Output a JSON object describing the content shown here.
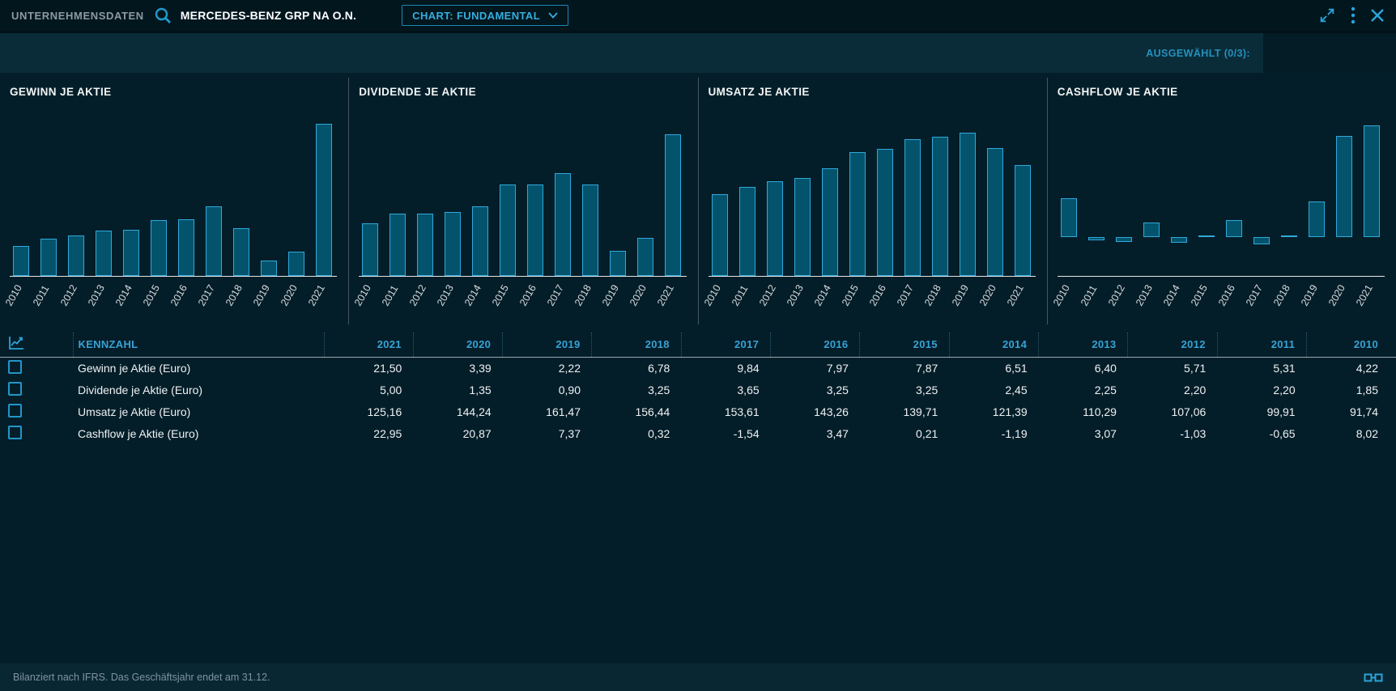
{
  "topbar": {
    "app_label": "UNTERNEHMENSDATEN",
    "security_name": "MERCEDES-BENZ GRP NA O.N.",
    "chart_selector_label": "CHART: FUNDAMENTAL"
  },
  "toolbar": {
    "selected_label": "AUSGEWÄHLT (0/3):"
  },
  "chart_data": [
    {
      "type": "bar",
      "title": "GEWINN JE AKTIE",
      "categories": [
        "2010",
        "2011",
        "2012",
        "2013",
        "2014",
        "2015",
        "2016",
        "2017",
        "2018",
        "2019",
        "2020",
        "2021"
      ],
      "values": [
        4.22,
        5.31,
        5.71,
        6.4,
        6.51,
        7.87,
        7.97,
        9.84,
        6.78,
        2.22,
        3.39,
        21.5
      ],
      "ylim": [
        0,
        22
      ],
      "grid": false,
      "legend": false
    },
    {
      "type": "bar",
      "title": "DIVIDENDE JE AKTIE",
      "categories": [
        "2010",
        "2011",
        "2012",
        "2013",
        "2014",
        "2015",
        "2016",
        "2017",
        "2018",
        "2019",
        "2020",
        "2021"
      ],
      "values": [
        1.85,
        2.2,
        2.2,
        2.25,
        2.45,
        3.25,
        3.25,
        3.65,
        3.25,
        0.9,
        1.35,
        5.0
      ],
      "ylim": [
        0,
        5.5
      ],
      "grid": false,
      "legend": false
    },
    {
      "type": "bar",
      "title": "UMSATZ JE AKTIE",
      "categories": [
        "2010",
        "2011",
        "2012",
        "2013",
        "2014",
        "2015",
        "2016",
        "2017",
        "2018",
        "2019",
        "2020",
        "2021"
      ],
      "values": [
        91.74,
        99.91,
        107.06,
        110.29,
        121.39,
        139.71,
        143.26,
        153.61,
        156.44,
        161.47,
        144.24,
        125.16
      ],
      "ylim": [
        0,
        175
      ],
      "grid": false,
      "legend": false
    },
    {
      "type": "bar",
      "title": "CASHFLOW JE AKTIE",
      "categories": [
        "2010",
        "2011",
        "2012",
        "2013",
        "2014",
        "2015",
        "2016",
        "2017",
        "2018",
        "2019",
        "2020",
        "2021"
      ],
      "values": [
        8.02,
        -0.65,
        -1.03,
        3.07,
        -1.19,
        0.21,
        3.47,
        -1.54,
        0.32,
        7.37,
        20.87,
        22.95
      ],
      "ylim": [
        -8,
        24
      ],
      "grid": false,
      "legend": false
    }
  ],
  "table": {
    "metric_header": "KENNZAHL",
    "year_headers": [
      "2021",
      "2020",
      "2019",
      "2018",
      "2017",
      "2016",
      "2015",
      "2014",
      "2013",
      "2012",
      "2011",
      "2010"
    ],
    "rows": [
      {
        "label": "Gewinn je Aktie (Euro)",
        "values": [
          "21,50",
          "3,39",
          "2,22",
          "6,78",
          "9,84",
          "7,97",
          "7,87",
          "6,51",
          "6,40",
          "5,71",
          "5,31",
          "4,22"
        ]
      },
      {
        "label": "Dividende je Aktie (Euro)",
        "values": [
          "5,00",
          "1,35",
          "0,90",
          "3,25",
          "3,65",
          "3,25",
          "3,25",
          "2,45",
          "2,25",
          "2,20",
          "2,20",
          "1,85"
        ]
      },
      {
        "label": "Umsatz je Aktie (Euro)",
        "values": [
          "125,16",
          "144,24",
          "161,47",
          "156,44",
          "153,61",
          "143,26",
          "139,71",
          "121,39",
          "110,29",
          "107,06",
          "99,91",
          "91,74"
        ]
      },
      {
        "label": "Cashflow je Aktie (Euro)",
        "values": [
          "22,95",
          "20,87",
          "7,37",
          "0,32",
          "-1,54",
          "3,47",
          "0,21",
          "-1,19",
          "3,07",
          "-1,03",
          "-0,65",
          "8,02"
        ]
      }
    ]
  },
  "footer": {
    "note": "Bilanziert nach IFRS. Das Geschäftsjahr endet am 31.12."
  },
  "colors": {
    "background": "#041e29",
    "topbar_bg": "#02161e",
    "toolbar_bg": "#0a2c39",
    "accent": "#2aa3d8",
    "bar_fill": "#04536d",
    "bar_stroke": "#2fa9da",
    "header_blue": "#39a2d4",
    "axis": "#e3e7e9"
  }
}
